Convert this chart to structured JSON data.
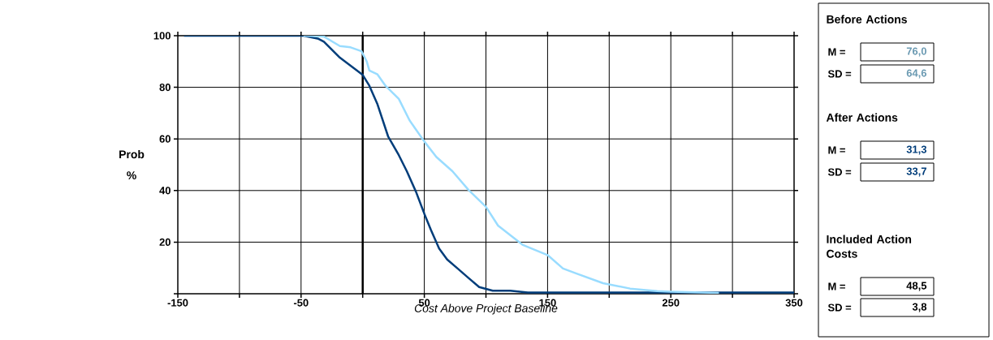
{
  "chart_data": {
    "type": "line",
    "xlabel": "Cost Above Project Baseline",
    "ylabel": "Prob %",
    "xlim": [
      -150,
      350
    ],
    "ylim": [
      0,
      100
    ],
    "xticks": [
      -150,
      {
        "value": -100,
        "label": null
      },
      -50,
      {
        "value": 0,
        "label": null
      },
      50,
      {
        "value": 100,
        "label": null
      },
      150,
      {
        "value": 200,
        "label": null
      },
      250,
      {
        "value": 300,
        "label": null
      },
      350
    ],
    "yticks": [
      {
        "value": 0,
        "label": null
      },
      20,
      40,
      60,
      80,
      100
    ],
    "grid": true,
    "marker": "none",
    "line_style": "solid",
    "ref_lines": [
      {
        "axis": "x",
        "value": 0,
        "color": "#000000"
      }
    ],
    "series": [
      {
        "color": "#99dcff",
        "x": [
          -48,
          -45,
          -31.6,
          -18.5,
          -9.8,
          -1,
          3.3,
          5.4,
          12,
          18.5,
          29.3,
          38,
          50,
          59.8,
          72.8,
          85.9,
          100,
          109.8,
          129.6,
          150,
          162.5,
          173.5,
          195,
          217,
          239,
          250,
          289
        ],
        "values": [
          100,
          100,
          99.7,
          96,
          95.5,
          94,
          90,
          86.5,
          85,
          80.6,
          75.5,
          67.2,
          59,
          53,
          47.5,
          40.2,
          33.7,
          26.4,
          19,
          15,
          9.8,
          7.8,
          4.1,
          2,
          1,
          0.8,
          0.3
        ]
      },
      {
        "color": "#003d7a",
        "x": [
          -145,
          -48,
          -35.9,
          -31.5,
          -18.5,
          -9.8,
          0,
          5.4,
          12,
          20.6,
          29.3,
          35.8,
          43.5,
          50,
          55.4,
          62,
          68.5,
          77.2,
          85.9,
          94.5,
          105.5,
          119.7,
          134,
          350
        ],
        "values": [
          100,
          100,
          98.8,
          97.7,
          91.5,
          88.4,
          84.8,
          80.6,
          73.4,
          61,
          53.7,
          47.5,
          39.2,
          31,
          24.7,
          17.5,
          13.3,
          9.7,
          6.1,
          2.6,
          1.2,
          1.2,
          0.5,
          0.5
        ]
      }
    ],
    "annotations": [
      "Before Actions",
      "M =",
      "76,0",
      "SD =",
      "64,6",
      "After Actions",
      "M =",
      "31,3",
      "SD =",
      "33,7",
      "Included Action Costs",
      "M =",
      "48,5",
      "SD =",
      "3,8"
    ]
  }
}
